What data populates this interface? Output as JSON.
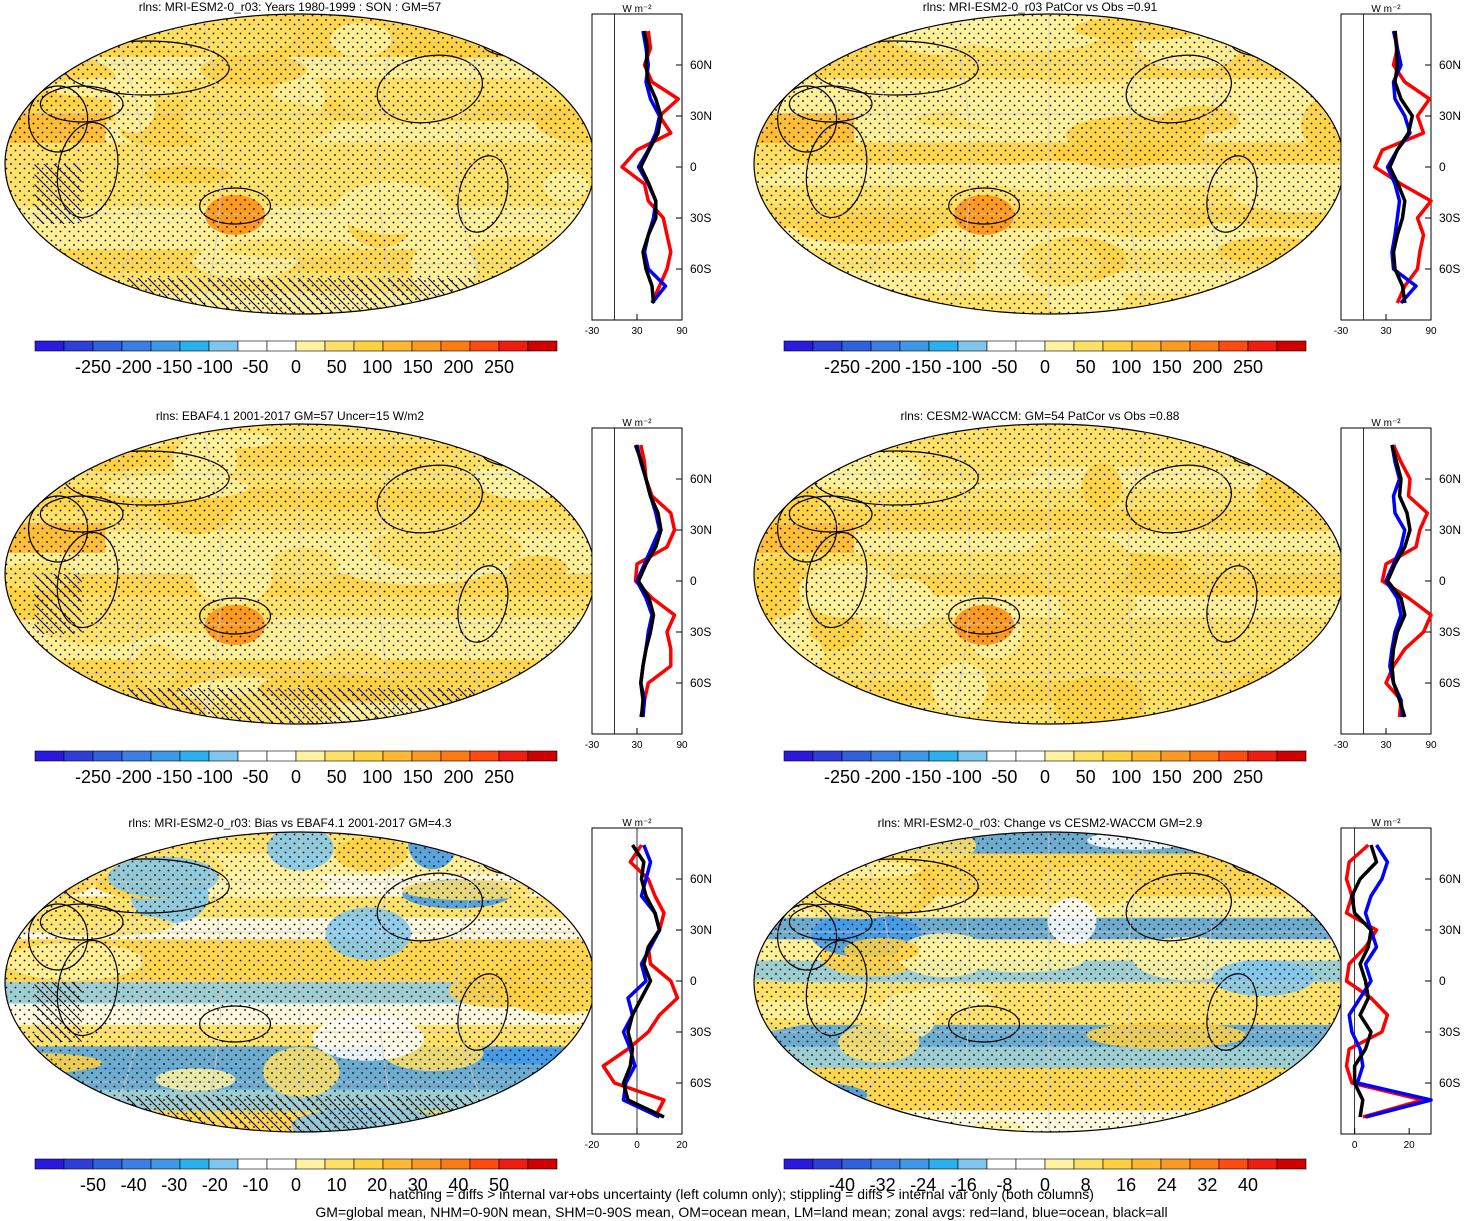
{
  "chart_data": [
    {
      "type": "heatmap",
      "title": "rlns: MRI-ESM2-0_r03: Years 1980-1999 : SON : GM=57",
      "colorbar_ticks": [
        "-250",
        "-200",
        "-150",
        "-100",
        "-50",
        "0",
        "50",
        "100",
        "150",
        "200",
        "250"
      ],
      "colorbar_range": [
        -250,
        250
      ],
      "colorbar_colors": [
        "#2a1ae0",
        "#2e3ed8",
        "#3060e0",
        "#3a7ee6",
        "#3e98ea",
        "#28b0f0",
        "#7fc6ee",
        "#ffffff",
        "#ffffff",
        "#fff2a0",
        "#ffe066",
        "#ffd040",
        "#ffb830",
        "#ff9a20",
        "#ff7a10",
        "#ff4a10",
        "#f01c10",
        "#d00000"
      ],
      "field_style": "climatology",
      "zonal_units": "W m⁻²",
      "zonal_xlim": [
        -30,
        90
      ],
      "zonal_xticks": [
        "-30",
        "30",
        "90"
      ],
      "zonal_yticks": [
        "60N",
        "30N",
        "0",
        "30S",
        "60S"
      ],
      "zonal_series": [
        {
          "color": "#ff0000",
          "lat": [
            80,
            70,
            60,
            50,
            40,
            30,
            20,
            10,
            0,
            -10,
            -20,
            -30,
            -40,
            -50,
            -60,
            -70,
            -80
          ],
          "values": [
            45,
            48,
            40,
            50,
            85,
            60,
            75,
            30,
            10,
            40,
            45,
            65,
            70,
            75,
            70,
            60,
            50
          ]
        },
        {
          "color": "#0000ff",
          "lat": [
            80,
            70,
            60,
            50,
            40,
            30,
            20,
            10,
            0,
            -10,
            -20,
            -30,
            -40,
            -50,
            -60,
            -70,
            -80
          ],
          "values": [
            38,
            42,
            45,
            42,
            48,
            60,
            55,
            45,
            32,
            45,
            55,
            52,
            45,
            40,
            45,
            68,
            50
          ]
        },
        {
          "color": "#000000",
          "lat": [
            80,
            70,
            60,
            50,
            40,
            30,
            20,
            10,
            0,
            -10,
            -20,
            -30,
            -40,
            -50,
            -60,
            -70,
            -80
          ],
          "values": [
            40,
            44,
            42,
            45,
            55,
            62,
            58,
            46,
            35,
            46,
            55,
            55,
            45,
            38,
            42,
            50,
            52
          ]
        }
      ]
    },
    {
      "type": "heatmap",
      "title": "rlns: MRI-ESM2-0_r03 PatCor vs Obs =0.91",
      "colorbar_ticks": [
        "-250",
        "-200",
        "-150",
        "-100",
        "-50",
        "0",
        "50",
        "100",
        "150",
        "200",
        "250"
      ],
      "colorbar_range": [
        -250,
        250
      ],
      "colorbar_colors": [
        "#2a1ae0",
        "#2e3ed8",
        "#3060e0",
        "#3a7ee6",
        "#3e98ea",
        "#28b0f0",
        "#7fc6ee",
        "#ffffff",
        "#ffffff",
        "#fff2a0",
        "#ffe066",
        "#ffd040",
        "#ffb830",
        "#ff9a20",
        "#ff7a10",
        "#ff4a10",
        "#f01c10",
        "#d00000"
      ],
      "field_style": "climatology",
      "zonal_units": "W m⁻²",
      "zonal_xlim": [
        -30,
        90
      ],
      "zonal_xticks": [
        "-30",
        "30",
        "90"
      ],
      "zonal_yticks": [
        "60N",
        "30N",
        "0",
        "30S",
        "60S"
      ],
      "zonal_series": [
        {
          "color": "#ff0000",
          "lat": [
            80,
            70,
            60,
            50,
            40,
            30,
            20,
            10,
            0,
            -10,
            -20,
            -30,
            -40,
            -50,
            -60,
            -70,
            -80
          ],
          "values": [
            42,
            45,
            40,
            55,
            88,
            72,
            80,
            25,
            15,
            50,
            90,
            72,
            80,
            75,
            72,
            55,
            45
          ]
        },
        {
          "color": "#0000ff",
          "lat": [
            80,
            70,
            60,
            50,
            40,
            30,
            20,
            10,
            0,
            -10,
            -20,
            -30,
            -40,
            -50,
            -60,
            -70,
            -80
          ],
          "values": [
            40,
            45,
            50,
            40,
            42,
            55,
            62,
            45,
            32,
            42,
            48,
            45,
            42,
            38,
            40,
            70,
            50
          ]
        },
        {
          "color": "#000000",
          "lat": [
            80,
            70,
            60,
            50,
            40,
            30,
            20,
            10,
            0,
            -10,
            -20,
            -30,
            -40,
            -50,
            -60,
            -70,
            -80
          ],
          "values": [
            42,
            44,
            45,
            42,
            50,
            65,
            60,
            45,
            35,
            46,
            55,
            52,
            45,
            40,
            42,
            52,
            55
          ]
        }
      ]
    },
    {
      "type": "heatmap",
      "title": "rlns: EBAF4.1 2001-2017 GM=57 Uncer=15 W/m2",
      "colorbar_ticks": [
        "-250",
        "-200",
        "-150",
        "-100",
        "-50",
        "0",
        "50",
        "100",
        "150",
        "200",
        "250"
      ],
      "colorbar_range": [
        -250,
        250
      ],
      "colorbar_colors": [
        "#2a1ae0",
        "#2e3ed8",
        "#3060e0",
        "#3a7ee6",
        "#3e98ea",
        "#28b0f0",
        "#7fc6ee",
        "#ffffff",
        "#ffffff",
        "#fff2a0",
        "#ffe066",
        "#ffd040",
        "#ffb830",
        "#ff9a20",
        "#ff7a10",
        "#ff4a10",
        "#f01c10",
        "#d00000"
      ],
      "field_style": "climatology",
      "zonal_units": "W m⁻²",
      "zonal_xlim": [
        -30,
        90
      ],
      "zonal_xticks": [
        "-30",
        "30",
        "90"
      ],
      "zonal_yticks": [
        "60N",
        "30N",
        "0",
        "30S",
        "60S"
      ],
      "zonal_series": [
        {
          "color": "#ff0000",
          "lat": [
            80,
            70,
            60,
            50,
            40,
            30,
            20,
            10,
            0,
            -10,
            -20,
            -30,
            -40,
            -50,
            -60,
            -70,
            -80
          ],
          "values": [
            35,
            40,
            42,
            50,
            75,
            80,
            70,
            30,
            28,
            50,
            80,
            70,
            75,
            75,
            45,
            40,
            35
          ]
        },
        {
          "color": "#0000ff",
          "lat": [
            80,
            70,
            60,
            50,
            40,
            30,
            20,
            10,
            0,
            -10,
            -20,
            -30,
            -40,
            -50,
            -60,
            -70,
            -80
          ],
          "values": [
            30,
            35,
            42,
            48,
            55,
            60,
            50,
            40,
            30,
            42,
            50,
            45,
            42,
            38,
            35,
            40,
            38
          ]
        },
        {
          "color": "#000000",
          "lat": [
            80,
            70,
            60,
            50,
            40,
            30,
            20,
            10,
            0,
            -10,
            -20,
            -30,
            -40,
            -50,
            -60,
            -70,
            -80
          ],
          "values": [
            28,
            36,
            42,
            48,
            58,
            62,
            55,
            42,
            32,
            46,
            52,
            48,
            42,
            38,
            35,
            38,
            36
          ]
        }
      ]
    },
    {
      "type": "heatmap",
      "title": "rlns: CESM2-WACCM: GM=54 PatCor vs Obs =0.88",
      "colorbar_ticks": [
        "-250",
        "-200",
        "-150",
        "-100",
        "-50",
        "0",
        "50",
        "100",
        "150",
        "200",
        "250"
      ],
      "colorbar_range": [
        -250,
        250
      ],
      "colorbar_colors": [
        "#2a1ae0",
        "#2e3ed8",
        "#3060e0",
        "#3a7ee6",
        "#3e98ea",
        "#28b0f0",
        "#7fc6ee",
        "#ffffff",
        "#ffffff",
        "#fff2a0",
        "#ffe066",
        "#ffd040",
        "#ffb830",
        "#ff9a20",
        "#ff7a10",
        "#ff4a10",
        "#f01c10",
        "#d00000"
      ],
      "field_style": "climatology",
      "zonal_units": "W m⁻²",
      "zonal_xlim": [
        -30,
        90
      ],
      "zonal_xticks": [
        "-30",
        "30",
        "90"
      ],
      "zonal_yticks": [
        "60N",
        "30N",
        "0",
        "30S",
        "60S"
      ],
      "zonal_series": [
        {
          "color": "#ff0000",
          "lat": [
            80,
            70,
            60,
            50,
            40,
            30,
            20,
            10,
            0,
            -10,
            -20,
            -30,
            -40,
            -50,
            -60,
            -70,
            -80
          ],
          "values": [
            40,
            50,
            62,
            60,
            85,
            75,
            70,
            30,
            25,
            60,
            90,
            80,
            55,
            40,
            30,
            50,
            48
          ]
        },
        {
          "color": "#0000ff",
          "lat": [
            80,
            70,
            60,
            50,
            40,
            30,
            20,
            10,
            0,
            -10,
            -20,
            -30,
            -40,
            -50,
            -60,
            -70,
            -80
          ],
          "values": [
            38,
            42,
            48,
            40,
            42,
            55,
            50,
            40,
            30,
            45,
            50,
            42,
            38,
            35,
            40,
            50,
            52
          ]
        },
        {
          "color": "#000000",
          "lat": [
            80,
            70,
            60,
            50,
            40,
            30,
            20,
            10,
            0,
            -10,
            -20,
            -30,
            -40,
            -50,
            -60,
            -70,
            -80
          ],
          "values": [
            38,
            44,
            50,
            48,
            58,
            62,
            55,
            42,
            32,
            50,
            55,
            45,
            40,
            38,
            40,
            48,
            55
          ]
        }
      ]
    },
    {
      "type": "heatmap",
      "title": "rlns: MRI-ESM2-0_r03: Bias vs EBAF4.1 2001-2017  GM=4.3",
      "colorbar_ticks": [
        "-50",
        "-40",
        "-30",
        "-20",
        "-10",
        "0",
        "10",
        "20",
        "30",
        "40",
        "50"
      ],
      "colorbar_range": [
        -50,
        50
      ],
      "colorbar_colors": [
        "#2a1ae0",
        "#2e3ed8",
        "#3060e0",
        "#3a7ee6",
        "#3e98ea",
        "#28b0f0",
        "#7fc6ee",
        "#ffffff",
        "#ffffff",
        "#fff2a0",
        "#ffe066",
        "#ffd040",
        "#ffb830",
        "#ff9a20",
        "#ff7a10",
        "#ff4a10",
        "#f01c10",
        "#d00000"
      ],
      "field_style": "bias",
      "zonal_units": "W m⁻²",
      "zonal_xlim": [
        -20,
        20
      ],
      "zonal_xticks": [
        "-20",
        "0",
        "20"
      ],
      "zonal_yticks": [
        "60N",
        "30N",
        "0",
        "30S",
        "60S"
      ],
      "zonal_series": [
        {
          "color": "#ff0000",
          "lat": [
            80,
            70,
            60,
            50,
            40,
            30,
            20,
            10,
            0,
            -10,
            -20,
            -30,
            -40,
            -50,
            -60,
            -70,
            -80
          ],
          "values": [
            2,
            -3,
            5,
            8,
            12,
            10,
            5,
            6,
            15,
            18,
            10,
            5,
            -4,
            -15,
            -10,
            12,
            8
          ]
        },
        {
          "color": "#0000ff",
          "lat": [
            80,
            70,
            60,
            50,
            40,
            30,
            20,
            10,
            0,
            -10,
            -20,
            -30,
            -40,
            -50,
            -60,
            -70,
            -80
          ],
          "values": [
            3,
            6,
            4,
            2,
            8,
            10,
            6,
            2,
            4,
            -4,
            -2,
            -6,
            -3,
            -1,
            -5,
            -6,
            10
          ]
        },
        {
          "color": "#000000",
          "lat": [
            80,
            70,
            60,
            50,
            40,
            30,
            20,
            10,
            0,
            -10,
            -20,
            -30,
            -40,
            -50,
            -60,
            -70,
            -80
          ],
          "values": [
            -2,
            3,
            2,
            4,
            8,
            10,
            5,
            3,
            6,
            2,
            -2,
            -4,
            -2,
            -3,
            -6,
            -4,
            12
          ]
        }
      ]
    },
    {
      "type": "heatmap",
      "title": "rlns: MRI-ESM2-0_r03: Change vs CESM2-WACCM GM=2.9",
      "colorbar_ticks": [
        "-40",
        "-32",
        "-24",
        "-16",
        "-8",
        "0",
        "8",
        "16",
        "24",
        "32",
        "40"
      ],
      "colorbar_range": [
        -40,
        40
      ],
      "colorbar_colors": [
        "#2a1ae0",
        "#2e3ed8",
        "#3060e0",
        "#3a7ee6",
        "#3e98ea",
        "#28b0f0",
        "#7fc6ee",
        "#ffffff",
        "#ffffff",
        "#fff2a0",
        "#ffe066",
        "#ffd040",
        "#ffb830",
        "#ff9a20",
        "#ff7a10",
        "#ff4a10",
        "#f01c10",
        "#d00000"
      ],
      "field_style": "change",
      "zonal_units": "W m⁻²",
      "zonal_xlim": [
        -5,
        28
      ],
      "zonal_xticks": [
        "0",
        "20"
      ],
      "zonal_yticks": [
        "60N",
        "30N",
        "0",
        "30S",
        "60S"
      ],
      "zonal_series": [
        {
          "color": "#ff0000",
          "lat": [
            80,
            70,
            60,
            50,
            40,
            30,
            20,
            10,
            0,
            -10,
            -20,
            -30,
            -40,
            -50,
            -60,
            -70,
            -80
          ],
          "values": [
            5,
            -2,
            -3,
            -1,
            -3,
            8,
            4,
            -2,
            -3,
            6,
            12,
            10,
            -2,
            -3,
            -1,
            25,
            3
          ]
        },
        {
          "color": "#0000ff",
          "lat": [
            80,
            70,
            60,
            50,
            40,
            30,
            20,
            10,
            0,
            -10,
            -20,
            -30,
            -40,
            -50,
            -60,
            -70,
            -80
          ],
          "values": [
            8,
            12,
            10,
            6,
            4,
            6,
            8,
            4,
            6,
            2,
            -2,
            -1,
            2,
            3,
            1,
            28,
            4
          ]
        },
        {
          "color": "#000000",
          "lat": [
            80,
            70,
            60,
            50,
            40,
            30,
            20,
            10,
            0,
            -10,
            -20,
            -30,
            -40,
            -50,
            -60,
            -70,
            -80
          ],
          "values": [
            6,
            8,
            2,
            -1,
            0,
            6,
            5,
            2,
            4,
            5,
            2,
            6,
            4,
            0,
            0,
            3,
            2
          ]
        }
      ]
    }
  ],
  "footnote": {
    "line1": "hatching = diffs > internal var+obs uncertainty (left column only); stippling = diffs > internal var only (both columns)",
    "line2": "GM=global mean, NHM=0-90N mean, SHM=0-90S mean, OM=ocean mean, LM=land mean; zonal avgs: red=land, blue=ocean, black=all"
  },
  "colors": {
    "land_series": "#ff0000",
    "ocean_series": "#0000ff",
    "all_series": "#000000"
  }
}
